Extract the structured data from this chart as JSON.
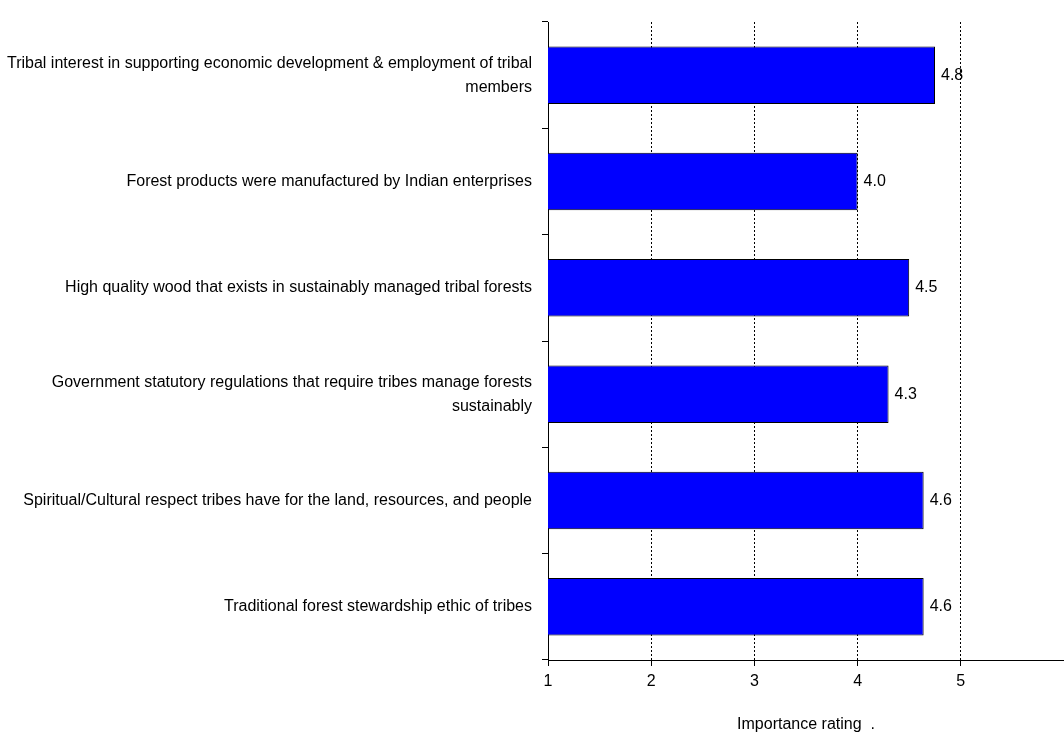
{
  "chart_data": {
    "type": "bar",
    "orientation": "horizontal",
    "xlabel": "Importance rating  .",
    "categories": [
      "Tribal interest in supporting economic development & employment of tribal members",
      "Forest products were manufactured by Indian enterprises",
      "High quality wood that exists in sustainably managed tribal forests",
      "Government statutory regulations that require tribes manage forests sustainably",
      "Spiritual/Cultural respect tribes have for the land, resources, and people",
      "Traditional forest stewardship ethic of tribes"
    ],
    "values": [
      4.75,
      4.0,
      4.5,
      4.3,
      4.64,
      4.64
    ],
    "value_labels": [
      "4.8",
      "4.0",
      "4.5",
      "4.3",
      "4.6",
      "4.6"
    ],
    "color": "#0000ff",
    "xlim": [
      1,
      6
    ],
    "xticks": [
      1,
      2,
      3,
      4,
      5
    ],
    "grid": "x"
  }
}
